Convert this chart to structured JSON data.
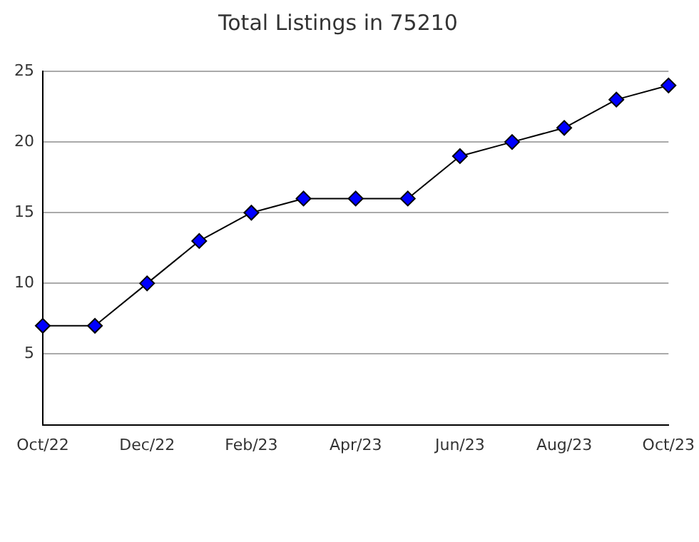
{
  "chart_data": {
    "type": "line",
    "title": "Total Listings in 75210",
    "categories": [
      "Oct/22",
      null,
      "Dec/22",
      null,
      "Feb/23",
      null,
      "Apr/23",
      null,
      "Jun/23",
      null,
      "Aug/23",
      null,
      "Oct/23"
    ],
    "series": [
      {
        "color": "#0000ff",
        "values": [
          7,
          7,
          10,
          13,
          15,
          16,
          16,
          16,
          19,
          20,
          21,
          23,
          24
        ]
      }
    ],
    "ylim": [
      0,
      25
    ],
    "yticks": [
      5,
      10,
      15,
      20,
      25
    ],
    "grid": "y",
    "legend": false,
    "marker": "diamond",
    "line_style": "solid"
  }
}
